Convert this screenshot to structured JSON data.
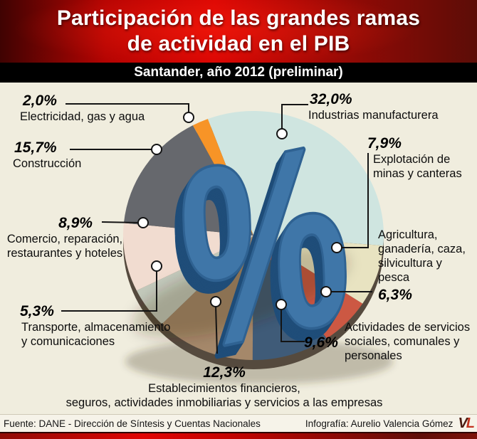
{
  "header": {
    "title_line1": "Participación de las grandes ramas",
    "title_line2": "de actividad en el PIB",
    "subtitle": "Santander, año 2012 (preliminar)"
  },
  "chart_data": {
    "type": "pie",
    "title": "Participación de las grandes ramas de actividad en el PIB",
    "subtitle": "Santander, año 2012 (preliminar)",
    "unit": "%",
    "start_angle_deg": -20.5,
    "center_symbol": "%",
    "legend_position": "callouts-around-pie",
    "slices": [
      {
        "label": "Industrias manufacturera",
        "value": 32.0,
        "display": "32,0%",
        "color": "#cfe5e0"
      },
      {
        "label": "Explotación de minas y canteras",
        "value": 7.9,
        "display": "7,9%",
        "color": "#e8e3c1"
      },
      {
        "label": "Agricultura, ganadería, caza, silvicultura y pesca",
        "value": 6.3,
        "display": "6,3%",
        "color": "#cc5843"
      },
      {
        "label": "Actividades de servicios sociales, comunales y personales",
        "value": 9.6,
        "display": "9,6%",
        "color": "#3f5b78"
      },
      {
        "label": "Establecimientos financieros, seguros, actividades inmobiliarias y servicios a las empresas",
        "value": 12.3,
        "display": "12,3%",
        "color": "#a5886a"
      },
      {
        "label": "Transporte, almacenamiento y comunicaciones",
        "value": 5.3,
        "display": "5,3%",
        "color": "#c3c9bb"
      },
      {
        "label": "Comercio, reparación, restaurantes y hoteles",
        "value": 8.9,
        "display": "8,9%",
        "color": "#f1dcd0"
      },
      {
        "label": "Construcción",
        "value": 15.7,
        "display": "15,7%",
        "color": "#66686d"
      },
      {
        "label": "Electricidad, gas y agua",
        "value": 2.0,
        "display": "2,0%",
        "color": "#f79427"
      }
    ]
  },
  "callouts": {
    "electricidad": {
      "pct": "2,0%",
      "lines": [
        "Electricidad, gas y agua"
      ]
    },
    "construccion": {
      "pct": "15,7%",
      "lines": [
        "Construcción"
      ]
    },
    "comercio": {
      "pct": "8,9%",
      "lines": [
        "Comercio, reparación,",
        "restaurantes y hoteles"
      ]
    },
    "transporte": {
      "pct": "5,3%",
      "lines": [
        "Transporte, almacenamiento",
        "y comunicaciones"
      ]
    },
    "financieros": {
      "pct": "12,3%",
      "lines": [
        "Establecimientos financieros,",
        "seguros, actividades inmobiliarias y servicios a las empresas"
      ]
    },
    "industrias": {
      "pct": "32,0%",
      "lines": [
        "Industrias manufacturera"
      ]
    },
    "minas": {
      "pct": "7,9%",
      "lines": [
        "Explotación de",
        "minas y canteras"
      ]
    },
    "agricultura": {
      "pct": "6,3%",
      "lines": [
        "Agricultura,",
        "ganadería, caza,",
        "silvicultura y",
        "pesca"
      ]
    },
    "servicios": {
      "pct": "9,6%",
      "lines": [
        "Actividades de servicios",
        "sociales, comunales y",
        "personales"
      ]
    }
  },
  "footer": {
    "source": "Fuente: DANE - Dirección de Síntesis y Cuentas Nacionales",
    "credit": "Infografía: Aurelio Valencia Gómez",
    "logo_v": "V",
    "logo_l": "L"
  }
}
